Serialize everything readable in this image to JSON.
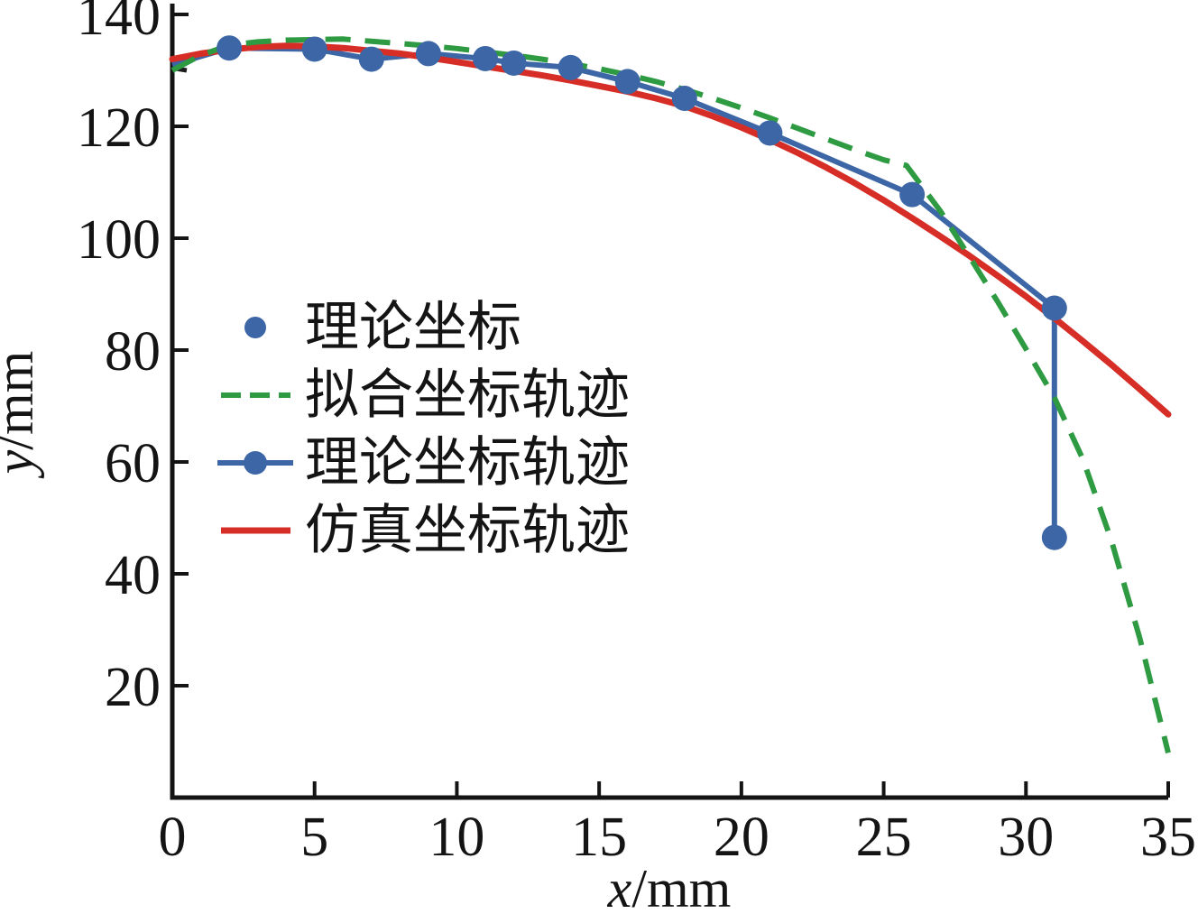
{
  "figure": {
    "background": "#ffffff",
    "axis_color": "#141414",
    "text_color": "#141414"
  },
  "chart_data": {
    "type": "line",
    "title": "",
    "xlabel": "x/mm",
    "ylabel": "y/mm",
    "xlabel_var": "x",
    "xlabel_unit": "/mm",
    "ylabel_var": "y",
    "ylabel_unit": "/mm",
    "xlim": [
      0,
      35
    ],
    "ylim": [
      0,
      142
    ],
    "x_ticks": [
      0,
      5,
      10,
      15,
      20,
      25,
      30,
      35
    ],
    "y_ticks": [
      20,
      40,
      60,
      80,
      100,
      120,
      140
    ],
    "grid": false,
    "legend_position": "inside-center-left",
    "minor_mark_y": 130,
    "series": [
      {
        "name": "理论坐标",
        "kind": "scatter",
        "color": "#3c66a5",
        "marker_radius": 14,
        "points": [
          [
            2,
            134
          ],
          [
            5,
            133.8
          ],
          [
            7,
            132
          ],
          [
            9,
            133
          ],
          [
            11,
            132.1
          ],
          [
            12,
            131.3
          ],
          [
            14,
            130.5
          ],
          [
            16,
            128
          ],
          [
            18,
            125
          ],
          [
            21,
            118.8
          ],
          [
            26,
            107.8
          ],
          [
            31,
            87.5
          ],
          [
            31,
            46.5
          ]
        ]
      },
      {
        "name": "拟合坐标轨迹",
        "kind": "dashed_line",
        "color": "#2e9a41",
        "line_width": 6,
        "dash": "28 16",
        "points": [
          [
            0,
            130
          ],
          [
            1,
            132.7
          ],
          [
            2,
            134.5
          ],
          [
            3,
            135.1
          ],
          [
            4,
            135.4
          ],
          [
            5,
            135.5
          ],
          [
            6,
            135.6
          ],
          [
            7,
            135.2
          ],
          [
            8,
            134.8
          ],
          [
            9,
            134.4
          ],
          [
            10,
            133.9
          ],
          [
            11,
            133.3
          ],
          [
            12,
            132.7
          ],
          [
            13,
            132
          ],
          [
            14,
            131.2
          ],
          [
            15,
            130.3
          ],
          [
            16,
            129.2
          ],
          [
            17,
            128
          ],
          [
            18,
            126.6
          ],
          [
            19,
            125
          ],
          [
            20,
            123.3
          ],
          [
            21,
            121.5
          ],
          [
            22,
            119.6
          ],
          [
            23,
            117.7
          ],
          [
            24,
            115.8
          ],
          [
            25,
            114
          ],
          [
            25.8,
            113
          ],
          [
            27,
            104.8
          ],
          [
            28,
            96.8
          ],
          [
            29,
            88.7
          ],
          [
            30,
            80.2
          ],
          [
            31,
            71.5
          ],
          [
            32,
            60.5
          ],
          [
            33,
            46
          ],
          [
            34,
            28.5
          ],
          [
            35,
            8
          ]
        ]
      },
      {
        "name": "理论坐标轨迹",
        "kind": "line_marker",
        "color": "#3c66a5",
        "line_width": 6,
        "marker_radius": 14,
        "points": [
          [
            0,
            131
          ],
          [
            2,
            134
          ],
          [
            5,
            133.8
          ],
          [
            7,
            132
          ],
          [
            9,
            133
          ],
          [
            11,
            132.1
          ],
          [
            12,
            131.3
          ],
          [
            14,
            130.5
          ],
          [
            16,
            128
          ],
          [
            18,
            125
          ],
          [
            21,
            118.8
          ],
          [
            26,
            107.8
          ],
          [
            31,
            87.5
          ],
          [
            31,
            46.5
          ]
        ]
      },
      {
        "name": "仿真坐标轨迹",
        "kind": "line",
        "color": "#d62e27",
        "line_width": 7,
        "points": [
          [
            0,
            132
          ],
          [
            1,
            133
          ],
          [
            2,
            133.7
          ],
          [
            3,
            134.2
          ],
          [
            4,
            134.4
          ],
          [
            5,
            134.3
          ],
          [
            6,
            134
          ],
          [
            7,
            133.5
          ],
          [
            8,
            133
          ],
          [
            9,
            132.3
          ],
          [
            10,
            131.5
          ],
          [
            11,
            130.7
          ],
          [
            12,
            129.9
          ],
          [
            13,
            129.1
          ],
          [
            14,
            128.2
          ],
          [
            15,
            127.2
          ],
          [
            16,
            126.2
          ],
          [
            17,
            125
          ],
          [
            18,
            123.6
          ],
          [
            19,
            121.8
          ],
          [
            20,
            119.8
          ],
          [
            21,
            117.6
          ],
          [
            22,
            115.2
          ],
          [
            23,
            112.6
          ],
          [
            24,
            109.8
          ],
          [
            25,
            106.8
          ],
          [
            26,
            103.6
          ],
          [
            27,
            100.3
          ],
          [
            28,
            96.9
          ],
          [
            29,
            93.3
          ],
          [
            30,
            89.6
          ],
          [
            31,
            85.7
          ],
          [
            32,
            81.6
          ],
          [
            33,
            77.4
          ],
          [
            34,
            73
          ],
          [
            35,
            68.5
          ]
        ]
      }
    ]
  }
}
